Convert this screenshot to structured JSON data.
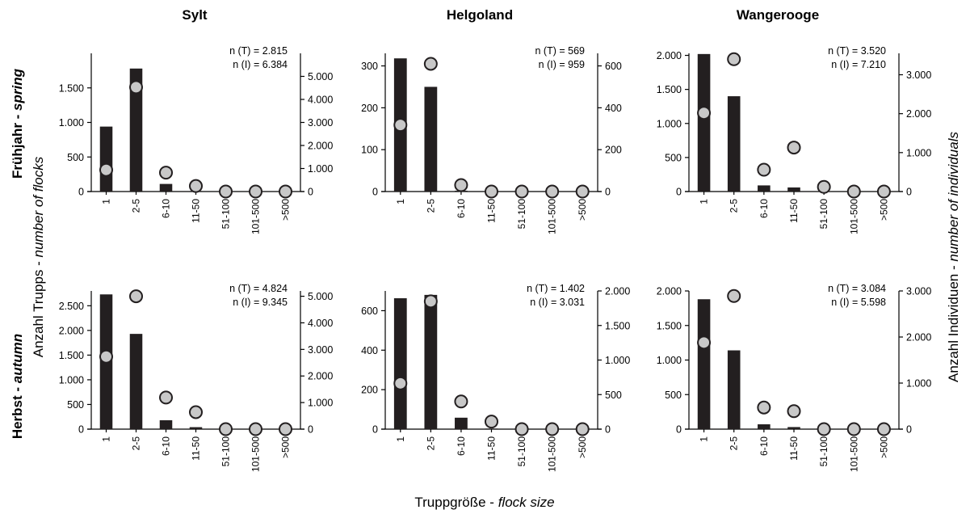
{
  "figure": {
    "y_left_label": {
      "de": "Anzahl Trupps",
      "sep": " - ",
      "en": "number of flocks"
    },
    "y_right_label": {
      "de": "Anzahl Individuen",
      "sep": " - ",
      "en": "number of individuals"
    },
    "x_label": {
      "de": "Truppgröße",
      "sep": " - ",
      "en": "flock size"
    },
    "columns": [
      "Sylt",
      "Helgoland",
      "Wangerooge"
    ],
    "rows": [
      {
        "de": "Frühjahr",
        "sep": " - ",
        "en": "spring"
      },
      {
        "de": "Herbst",
        "sep": " - ",
        "en": "autumn"
      }
    ],
    "colors": {
      "bar": "#231f20",
      "point_fill": "#c8c8c8",
      "point_stroke": "#231f20",
      "axis": "#000000"
    }
  },
  "chart_data": [
    {
      "type": "bar",
      "site": "Sylt",
      "season": "spring",
      "categories": [
        "1",
        "2-5",
        "6-10",
        "11-50",
        "51-100",
        "101-500",
        ">500"
      ],
      "series": [
        {
          "axis": "left",
          "kind": "bar",
          "values": [
            940,
            1780,
            110,
            8,
            0,
            0,
            0
          ]
        },
        {
          "axis": "right",
          "kind": "point",
          "values": [
            940,
            4530,
            820,
            240,
            0,
            0,
            0
          ]
        }
      ],
      "ylim_left": [
        0,
        2000
      ],
      "yticks_left": [
        0,
        500,
        1000,
        1500
      ],
      "ytick_labels_left": [
        "0",
        "500",
        "1.000",
        "1.500"
      ],
      "ylim_right": [
        0,
        6000
      ],
      "yticks_right": [
        0,
        1000,
        2000,
        3000,
        4000,
        5000
      ],
      "ytick_labels_right": [
        "0",
        "1.000",
        "2.000",
        "3.000",
        "4.000",
        "5.000"
      ],
      "annotation": [
        "n (T) = 2.815",
        "n (I) = 6.384"
      ]
    },
    {
      "type": "bar",
      "site": "Helgoland",
      "season": "spring",
      "categories": [
        "1",
        "2-5",
        "6-10",
        "11-50",
        "51-100",
        "101-500",
        ">500"
      ],
      "series": [
        {
          "axis": "left",
          "kind": "bar",
          "values": [
            318,
            250,
            2,
            0,
            0,
            0,
            0
          ]
        },
        {
          "axis": "right",
          "kind": "point",
          "values": [
            318,
            610,
            31,
            0,
            0,
            0,
            0
          ]
        }
      ],
      "ylim_left": [
        0,
        330
      ],
      "yticks_left": [
        0,
        100,
        200,
        300
      ],
      "ytick_labels_left": [
        "0",
        "100",
        "200",
        "300"
      ],
      "ylim_right": [
        0,
        660
      ],
      "yticks_right": [
        0,
        200,
        400,
        600
      ],
      "ytick_labels_right": [
        "0",
        "200",
        "400",
        "600"
      ],
      "annotation": [
        "n (T) = 569",
        "n (I) = 959"
      ]
    },
    {
      "type": "bar",
      "site": "Wangerooge",
      "season": "spring",
      "categories": [
        "1",
        "2-5",
        "6-10",
        "11-50",
        "51-100",
        "101-500",
        ">500"
      ],
      "series": [
        {
          "axis": "left",
          "kind": "bar",
          "values": [
            2020,
            1400,
            90,
            60,
            5,
            0,
            0
          ]
        },
        {
          "axis": "right",
          "kind": "point",
          "values": [
            2020,
            3400,
            560,
            1130,
            120,
            0,
            0
          ]
        }
      ],
      "ylim_left": [
        0,
        2030
      ],
      "yticks_left": [
        0,
        500,
        1000,
        1500,
        2000
      ],
      "ytick_labels_left": [
        "0",
        "500",
        "1.000",
        "1.500",
        "2.000"
      ],
      "ylim_right": [
        0,
        3550
      ],
      "yticks_right": [
        0,
        1000,
        2000,
        3000
      ],
      "ytick_labels_right": [
        "0",
        "1.000",
        "2.000",
        "3.000"
      ],
      "annotation": [
        "n (T) = 3.520",
        "n (I) = 7.210"
      ]
    },
    {
      "type": "bar",
      "site": "Sylt",
      "season": "autumn",
      "categories": [
        "1",
        "2-5",
        "6-10",
        "11-50",
        "51-100",
        "101-500",
        ">500"
      ],
      "series": [
        {
          "axis": "left",
          "kind": "bar",
          "values": [
            2730,
            1930,
            180,
            40,
            0,
            0,
            0
          ]
        },
        {
          "axis": "right",
          "kind": "point",
          "values": [
            2730,
            5000,
            1190,
            640,
            0,
            0,
            0
          ]
        }
      ],
      "ylim_left": [
        0,
        2800
      ],
      "yticks_left": [
        0,
        500,
        1000,
        1500,
        2000,
        2500
      ],
      "ytick_labels_left": [
        "0",
        "500",
        "1.000",
        "1.500",
        "2.000",
        "2.500"
      ],
      "ylim_right": [
        0,
        5200
      ],
      "yticks_right": [
        0,
        1000,
        2000,
        3000,
        4000,
        5000
      ],
      "ytick_labels_right": [
        "0",
        "1.000",
        "2.000",
        "3.000",
        "4.000",
        "5.000"
      ],
      "annotation": [
        "n (T) = 4.824",
        "n (I) = 9.345"
      ]
    },
    {
      "type": "bar",
      "site": "Helgoland",
      "season": "autumn",
      "categories": [
        "1",
        "2-5",
        "6-10",
        "11-50",
        "51-100",
        "101-500",
        ">500"
      ],
      "series": [
        {
          "axis": "left",
          "kind": "bar",
          "values": [
            663,
            680,
            58,
            3,
            0,
            0,
            0
          ]
        },
        {
          "axis": "right",
          "kind": "point",
          "values": [
            663,
            1850,
            400,
            110,
            0,
            0,
            0
          ]
        }
      ],
      "ylim_left": [
        0,
        700
      ],
      "yticks_left": [
        0,
        200,
        400,
        600
      ],
      "ytick_labels_left": [
        "0",
        "200",
        "400",
        "600"
      ],
      "ylim_right": [
        0,
        2000
      ],
      "yticks_right": [
        0,
        500,
        1000,
        1500,
        2000
      ],
      "ytick_labels_right": [
        "0",
        "500",
        "1.000",
        "1.500",
        "2.000"
      ],
      "annotation": [
        "n (T) = 1.402",
        "n (I) = 3.031"
      ]
    },
    {
      "type": "bar",
      "site": "Wangerooge",
      "season": "autumn",
      "categories": [
        "1",
        "2-5",
        "6-10",
        "11-50",
        "51-100",
        "101-500",
        ">500"
      ],
      "series": [
        {
          "axis": "left",
          "kind": "bar",
          "values": [
            1880,
            1140,
            70,
            30,
            0,
            0,
            0
          ]
        },
        {
          "axis": "right",
          "kind": "point",
          "values": [
            1880,
            2890,
            470,
            390,
            0,
            0,
            0
          ]
        }
      ],
      "ylim_left": [
        0,
        2000
      ],
      "yticks_left": [
        0,
        500,
        1000,
        1500,
        2000
      ],
      "ytick_labels_left": [
        "0",
        "500",
        "1.000",
        "1.500",
        "2.000"
      ],
      "ylim_right": [
        0,
        3000
      ],
      "yticks_right": [
        0,
        1000,
        2000,
        3000
      ],
      "ytick_labels_right": [
        "0",
        "1.000",
        "2.000",
        "3.000"
      ],
      "annotation": [
        "n (T) = 3.084",
        "n (I) = 5.598"
      ]
    }
  ]
}
